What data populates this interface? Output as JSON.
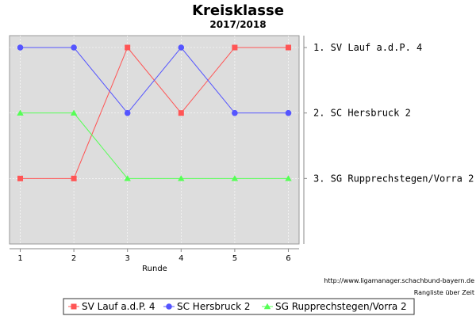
{
  "chart_data": {
    "type": "line",
    "title": "Kreisklasse",
    "subtitle": "2017/2018",
    "xlabel": "Runde",
    "ylabel": "",
    "categories": [
      1,
      2,
      3,
      4,
      5,
      6
    ],
    "xlim": [
      0.8,
      6.2
    ],
    "ylim": [
      1,
      4
    ],
    "y_inverted": true,
    "series": [
      {
        "name": "SV Lauf a.d.P. 4",
        "values": [
          3,
          3,
          1,
          2,
          1,
          1
        ],
        "color": "#ff5555",
        "marker": "square"
      },
      {
        "name": "SC Hersbruck 2",
        "values": [
          1,
          1,
          2,
          1,
          2,
          2
        ],
        "color": "#5555ff",
        "marker": "circle"
      },
      {
        "name": "SG Rupprechstegen/Vorra 2",
        "values": [
          2,
          2,
          3,
          3,
          3,
          3
        ],
        "color": "#55ff55",
        "marker": "triangle"
      }
    ],
    "rank_labels": [
      "1. SV Lauf a.d.P. 4",
      "2. SC Hersbruck 2",
      "3. SG Rupprechstegen/Vorra 2"
    ],
    "source_url": "http://www.ligamanager.schachbund-bayern.de",
    "caption": "Rangliste über Zeit",
    "grid": true,
    "legend_position": "bottom"
  }
}
